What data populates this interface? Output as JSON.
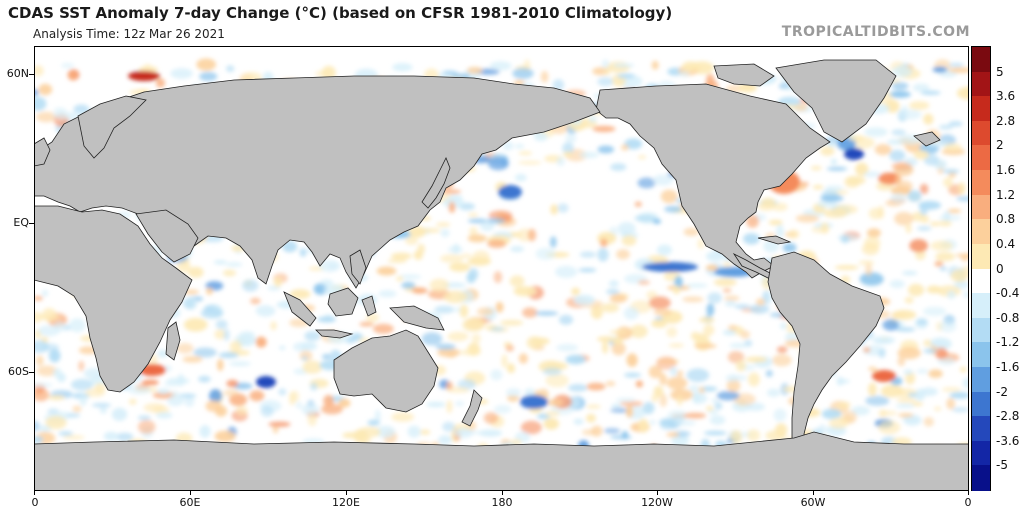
{
  "header": {
    "title": "CDAS SST Anomaly 7-day Change (°C) (based on CFSR 1981-2010 Climatology)",
    "subtitle": "Analysis Time: 12z Mar 26 2021",
    "credit": "TROPICALTIDBITS.COM"
  },
  "map": {
    "lat_labels": [
      "60N",
      "EQ",
      "60S"
    ],
    "lon_labels": [
      "0",
      "60E",
      "120E",
      "180",
      "120W",
      "60W",
      "0"
    ],
    "land_color": "#c0c0c0",
    "ocean_neutral_color": "#ffffff"
  },
  "colorbar": {
    "labels": [
      "5",
      "3.6",
      "2.8",
      "2",
      "1.6",
      "1.2",
      "0.8",
      "0.4",
      "0",
      "-0.4",
      "-0.8",
      "-1.2",
      "-1.6",
      "-2",
      "-2.8",
      "-3.6",
      "-5"
    ],
    "colors": [
      "#7a0a10",
      "#a21416",
      "#c62a1c",
      "#dd4a2e",
      "#ec6a44",
      "#f48b5c",
      "#f9ae7e",
      "#fcd09c",
      "#fde9b4",
      "#ffffff",
      "#d6effa",
      "#b3dcf4",
      "#8bc4ec",
      "#609ee0",
      "#3d76d0",
      "#2448bb",
      "#1326a6",
      "#08108a"
    ]
  }
}
